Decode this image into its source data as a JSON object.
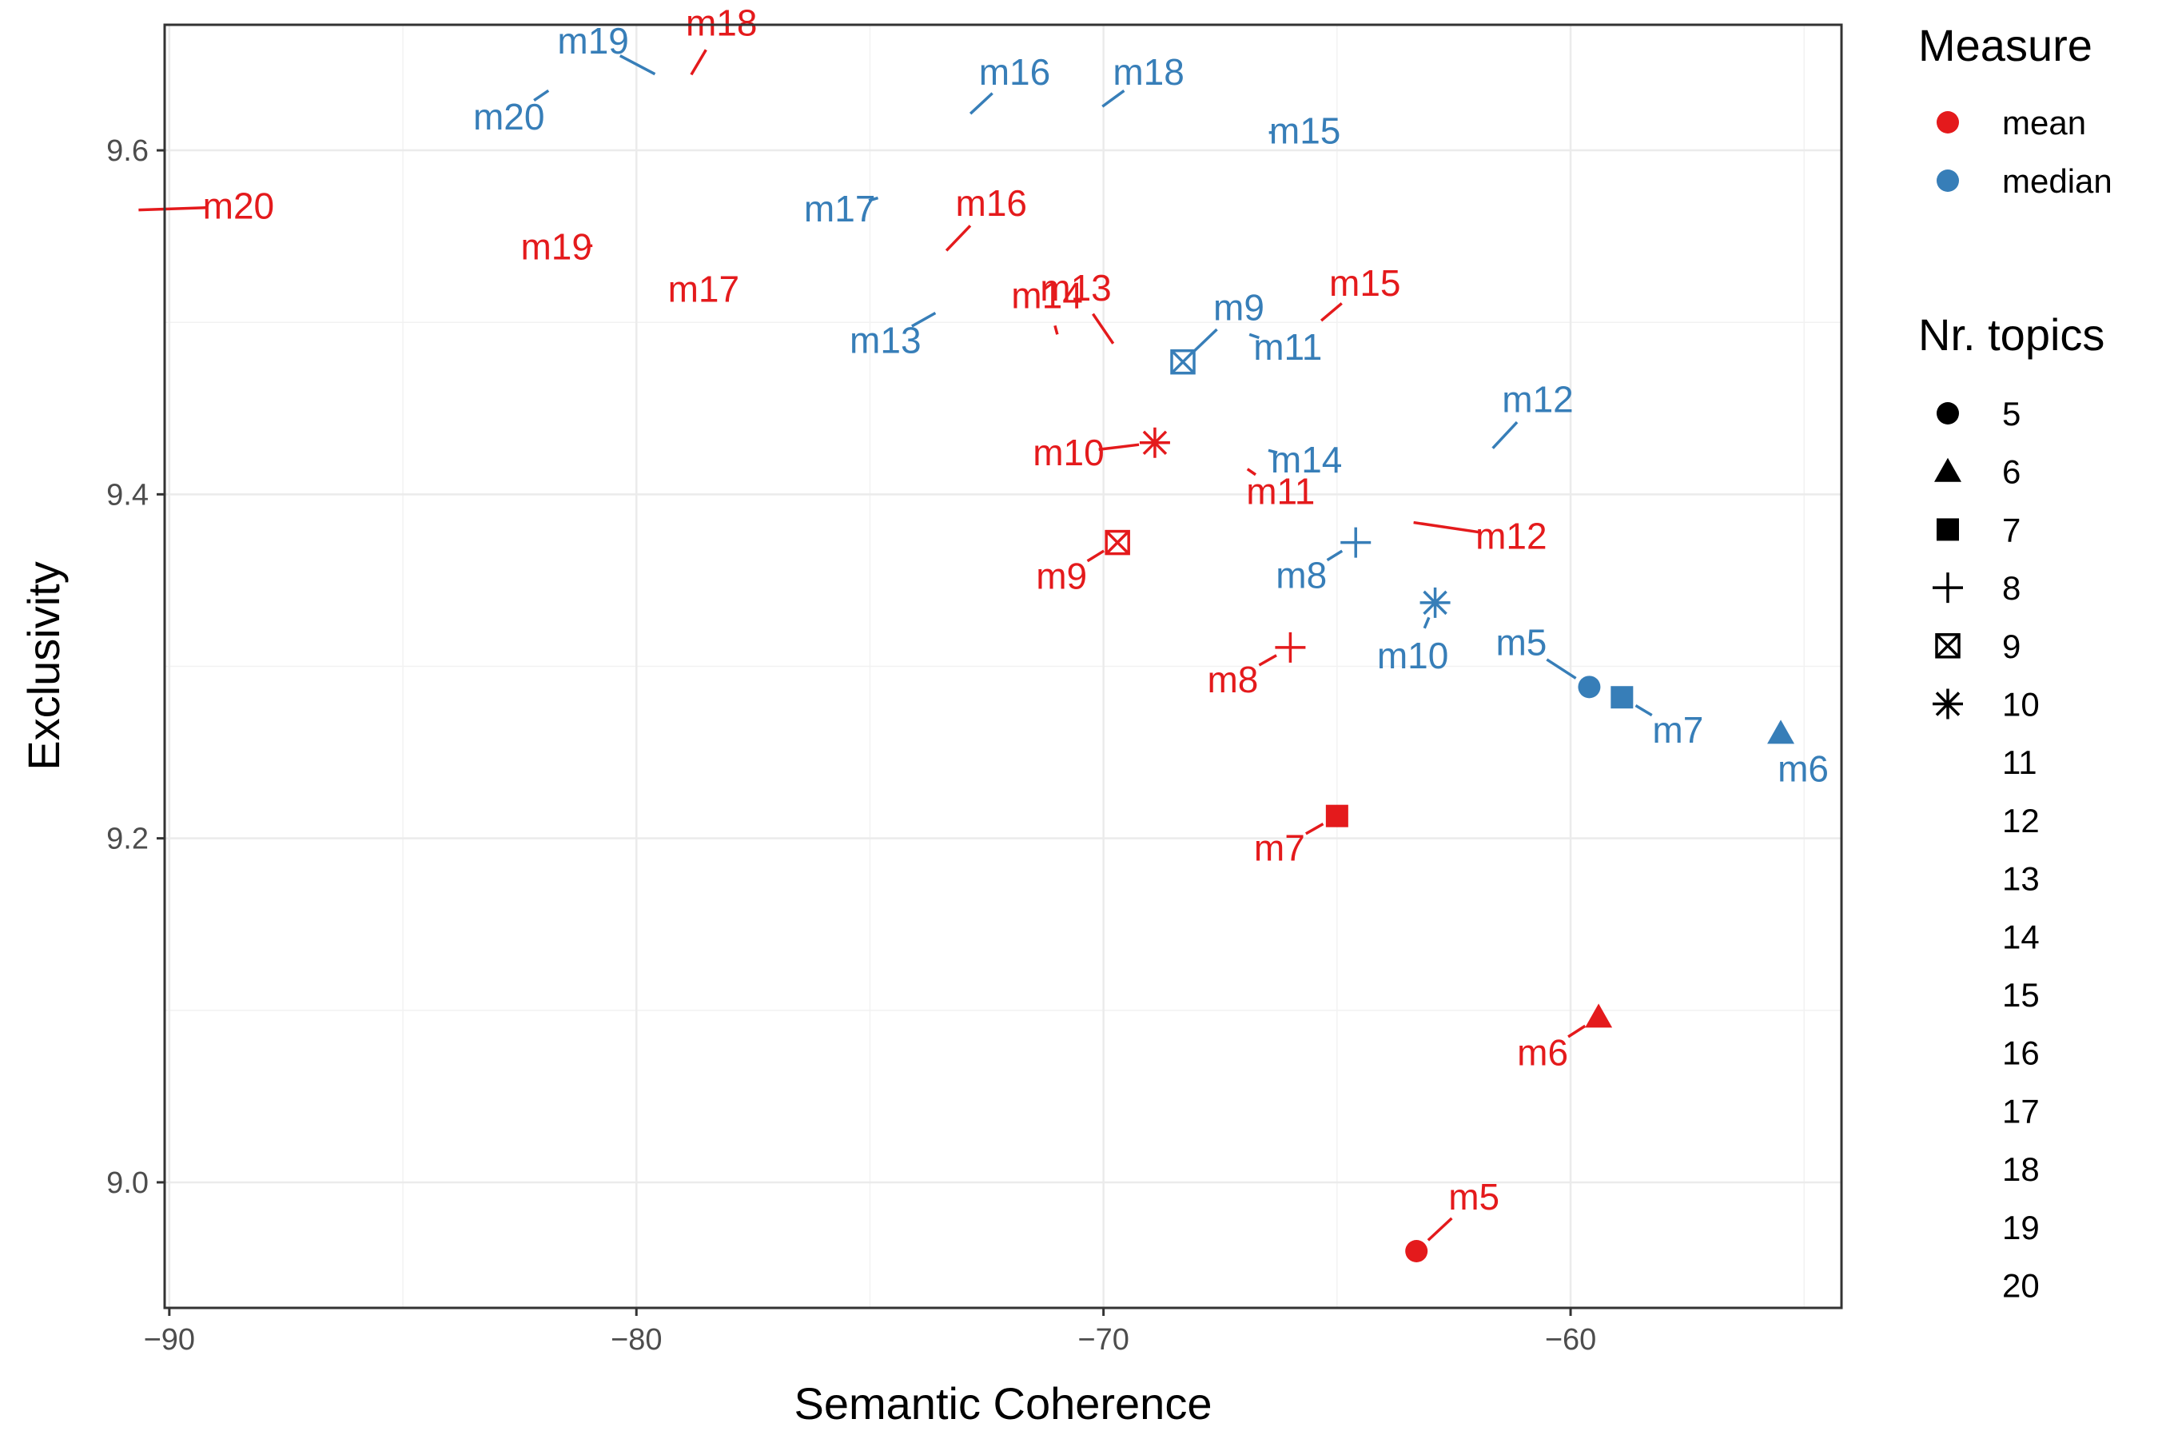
{
  "chart_data": {
    "type": "scatter",
    "xlabel": "Semantic Coherence",
    "ylabel": "Exclusivity",
    "xlim": [
      -90.1,
      -54.2
    ],
    "ylim": [
      8.927,
      9.673
    ],
    "xticks": [
      -90,
      -80,
      -70,
      -60
    ],
    "xtick_labels": [
      "−90",
      "−80",
      "−70",
      "−60"
    ],
    "yticks": [
      9.0,
      9.2,
      9.4,
      9.6
    ],
    "ytick_labels": [
      "9.0",
      "9.2",
      "9.4",
      "9.6"
    ],
    "grid": true,
    "legend_position": "right",
    "colors": {
      "mean": "#e41a1c",
      "median": "#377eb8"
    },
    "legend": {
      "measure": {
        "title": "Measure",
        "entries": [
          "mean",
          "median"
        ]
      },
      "topics": {
        "title": "Nr. topics",
        "entries": [
          {
            "label": "5",
            "shape": "circle"
          },
          {
            "label": "6",
            "shape": "triangle"
          },
          {
            "label": "7",
            "shape": "square"
          },
          {
            "label": "8",
            "shape": "plus"
          },
          {
            "label": "9",
            "shape": "boxcross"
          },
          {
            "label": "10",
            "shape": "asterisk"
          },
          {
            "label": "11",
            "shape": "none"
          },
          {
            "label": "12",
            "shape": "none"
          },
          {
            "label": "13",
            "shape": "none"
          },
          {
            "label": "14",
            "shape": "none"
          },
          {
            "label": "15",
            "shape": "none"
          },
          {
            "label": "16",
            "shape": "none"
          },
          {
            "label": "17",
            "shape": "none"
          },
          {
            "label": "18",
            "shape": "none"
          },
          {
            "label": "19",
            "shape": "none"
          },
          {
            "label": "20",
            "shape": "none"
          }
        ]
      }
    },
    "series": [
      {
        "name": "mean",
        "points": [
          {
            "label": "m5",
            "topics": 5,
            "x": -63.3,
            "y": 8.96
          },
          {
            "label": "m6",
            "topics": 6,
            "x": -59.4,
            "y": 9.096
          },
          {
            "label": "m7",
            "topics": 7,
            "x": -65.0,
            "y": 9.213
          },
          {
            "label": "m8",
            "topics": 8,
            "x": -66.0,
            "y": 9.311
          },
          {
            "label": "m9",
            "topics": 9,
            "x": -69.7,
            "y": 9.372
          },
          {
            "label": "m10",
            "topics": 10,
            "x": -68.9,
            "y": 9.43
          },
          {
            "label": "m11",
            "topics": 11,
            "x": -67.2,
            "y": 9.42
          },
          {
            "label": "m12",
            "topics": 12,
            "x": -63.7,
            "y": 9.385
          },
          {
            "label": "m13",
            "topics": 13,
            "x": -69.6,
            "y": 9.48
          },
          {
            "label": "m14",
            "topics": 14,
            "x": -70.9,
            "y": 9.484
          },
          {
            "label": "m15",
            "topics": 15,
            "x": -65.6,
            "y": 9.495
          },
          {
            "label": "m16",
            "topics": 16,
            "x": -73.6,
            "y": 9.535
          },
          {
            "label": "m17",
            "topics": 17,
            "x": -77.5,
            "y": 9.519
          },
          {
            "label": "m18",
            "topics": 18,
            "x": -79.0,
            "y": 9.636
          },
          {
            "label": "m19",
            "topics": 19,
            "x": -80.6,
            "y": 9.545
          },
          {
            "label": "m20",
            "topics": 20,
            "x": -91.0,
            "y": 9.565
          }
        ]
      },
      {
        "name": "median",
        "points": [
          {
            "label": "m5",
            "topics": 5,
            "x": -59.6,
            "y": 9.288
          },
          {
            "label": "m6",
            "topics": 6,
            "x": -55.5,
            "y": 9.261
          },
          {
            "label": "m7",
            "topics": 7,
            "x": -58.9,
            "y": 9.282
          },
          {
            "label": "m8",
            "topics": 8,
            "x": -64.6,
            "y": 9.372
          },
          {
            "label": "m9",
            "topics": 9,
            "x": -68.3,
            "y": 9.477
          },
          {
            "label": "m10",
            "topics": 10,
            "x": -62.9,
            "y": 9.337
          },
          {
            "label": "m11",
            "topics": 11,
            "x": -67.2,
            "y": 9.496
          },
          {
            "label": "m12",
            "topics": 12,
            "x": -61.9,
            "y": 9.42
          },
          {
            "label": "m13",
            "topics": 13,
            "x": -73.3,
            "y": 9.51
          },
          {
            "label": "m14",
            "topics": 14,
            "x": -66.8,
            "y": 9.428
          },
          {
            "label": "m15",
            "topics": 15,
            "x": -66.8,
            "y": 9.61
          },
          {
            "label": "m16",
            "topics": 16,
            "x": -73.1,
            "y": 9.615
          },
          {
            "label": "m17",
            "topics": 17,
            "x": -74.5,
            "y": 9.575
          },
          {
            "label": "m18",
            "topics": 18,
            "x": -70.3,
            "y": 9.62
          },
          {
            "label": "m19",
            "topics": 19,
            "x": -79.3,
            "y": 9.64
          },
          {
            "label": "m20",
            "topics": 20,
            "x": -81.6,
            "y": 9.64
          }
        ]
      }
    ]
  }
}
